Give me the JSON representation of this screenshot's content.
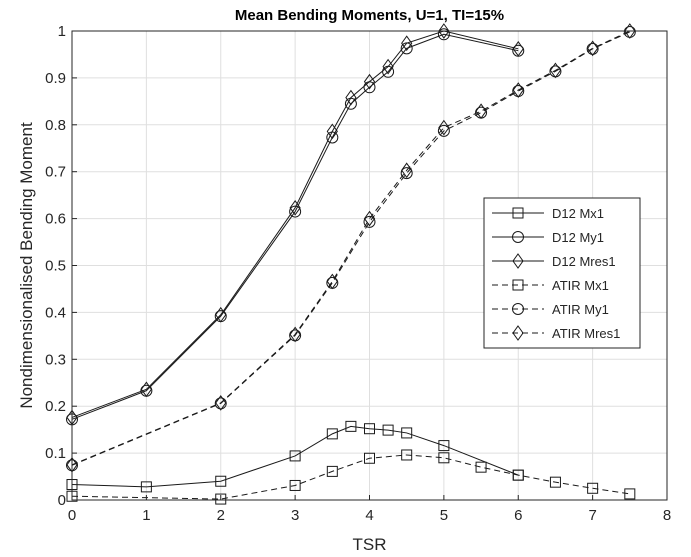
{
  "chart_data": {
    "type": "line",
    "title": "Mean Bending Moments, U=1, TI=15%",
    "xlabel": "TSR",
    "ylabel": "Nondimensionalised Bending Moment",
    "xlim": [
      0,
      8
    ],
    "ylim": [
      0,
      1
    ],
    "xticks": [
      "0",
      "1",
      "2",
      "3",
      "4",
      "5",
      "6",
      "7",
      "8"
    ],
    "yticks": [
      "0",
      "0.1",
      "0.2",
      "0.3",
      "0.4",
      "0.5",
      "0.6",
      "0.7",
      "0.8",
      "0.9",
      "1"
    ],
    "grid": true,
    "legend_position": "right",
    "series": [
      {
        "name": "D12 Mx1",
        "line": "solid",
        "marker": "square",
        "x": [
          0,
          1,
          2,
          3,
          3.5,
          3.75,
          4,
          4.25,
          4.5,
          5,
          6
        ],
        "y": [
          0.033,
          0.028,
          0.04,
          0.094,
          0.141,
          0.157,
          0.152,
          0.149,
          0.143,
          0.116,
          0.053
        ]
      },
      {
        "name": "D12 My1",
        "line": "solid",
        "marker": "circle",
        "x": [
          0,
          1,
          2,
          3,
          3.5,
          3.75,
          4,
          4.25,
          4.5,
          5,
          6
        ],
        "y": [
          0.172,
          0.233,
          0.392,
          0.615,
          0.773,
          0.845,
          0.88,
          0.913,
          0.963,
          0.993,
          0.958
        ]
      },
      {
        "name": "D12 Mres1",
        "line": "solid",
        "marker": "diamond",
        "x": [
          0,
          1,
          2,
          3,
          3.5,
          3.75,
          4,
          4.25,
          4.5,
          5,
          6
        ],
        "y": [
          0.176,
          0.236,
          0.395,
          0.623,
          0.786,
          0.858,
          0.892,
          0.924,
          0.974,
          1.0,
          0.962
        ]
      },
      {
        "name": "ATIR Mx1",
        "line": "dashed",
        "marker": "square",
        "x": [
          0,
          2,
          3,
          3.5,
          4,
          4.5,
          5,
          5.5,
          6,
          6.5,
          7,
          7.5
        ],
        "y": [
          0.008,
          0.002,
          0.031,
          0.061,
          0.089,
          0.096,
          0.09,
          0.07,
          0.053,
          0.038,
          0.025,
          0.013
        ]
      },
      {
        "name": "ATIR My1",
        "line": "dashed",
        "marker": "circle",
        "x": [
          0,
          2,
          3,
          3.5,
          4,
          4.5,
          5,
          5.5,
          6,
          6.5,
          7,
          7.5
        ],
        "y": [
          0.074,
          0.206,
          0.351,
          0.463,
          0.593,
          0.697,
          0.787,
          0.826,
          0.872,
          0.914,
          0.962,
          0.998
        ]
      },
      {
        "name": "ATIR Mres1",
        "line": "dashed",
        "marker": "diamond",
        "x": [
          0,
          2,
          3,
          3.5,
          4,
          4.5,
          5,
          5.5,
          6,
          6.5,
          7,
          7.5
        ],
        "y": [
          0.075,
          0.207,
          0.353,
          0.466,
          0.6,
          0.703,
          0.794,
          0.829,
          0.874,
          0.916,
          0.963,
          1.0
        ]
      }
    ]
  }
}
